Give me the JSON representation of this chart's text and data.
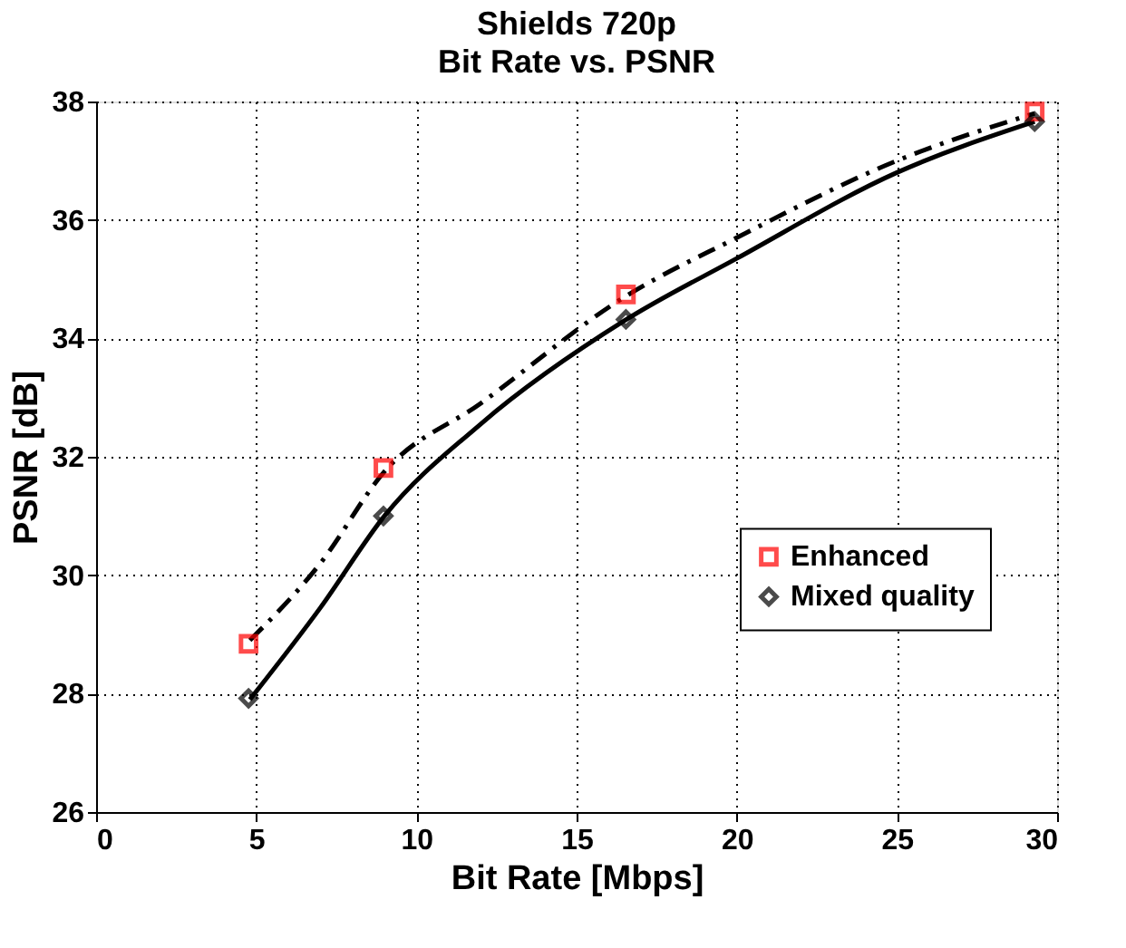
{
  "chart_data": {
    "type": "scatter",
    "title": "Shields 720p",
    "subtitle": "Bit Rate vs. PSNR",
    "xlabel": "Bit Rate [Mbps]",
    "ylabel": "PSNR [dB]",
    "series": [
      {
        "name": "Enhanced",
        "color": "#ff0000",
        "marker": "square",
        "x": [
          4.76,
          8.97,
          16.54,
          29.3
        ],
        "values": [
          28.84,
          31.81,
          34.74,
          37.83
        ]
      },
      {
        "name": "Mixed quality",
        "color": "#000000",
        "marker": "diamond",
        "x": [
          4.76,
          8.97,
          16.54,
          29.3
        ],
        "values": [
          27.92,
          31.0,
          34.32,
          37.66
        ]
      },
      {
        "type": "line",
        "color": "#000000",
        "line_style": "dashed",
        "x": [
          4.8,
          7.0,
          9.0,
          12.0,
          16.5,
          20.0,
          25.0,
          29.3
        ],
        "values": [
          28.9,
          30.2,
          31.75,
          32.9,
          34.7,
          35.7,
          37.0,
          37.8
        ]
      },
      {
        "type": "line",
        "color": "#000000",
        "line_style": "solid",
        "x": [
          4.8,
          7.0,
          9.0,
          12.0,
          16.5,
          20.0,
          25.0,
          29.3
        ],
        "values": [
          27.9,
          29.45,
          31.0,
          32.55,
          34.3,
          35.35,
          36.8,
          37.66
        ]
      }
    ],
    "xlim": [
      0,
      30
    ],
    "xticks": [
      0,
      5,
      10,
      15,
      20,
      25,
      30
    ],
    "ylim": [
      26,
      38
    ],
    "yticks": [
      26,
      28,
      30,
      32,
      34,
      36,
      38
    ],
    "grid": true,
    "legend": "right"
  }
}
